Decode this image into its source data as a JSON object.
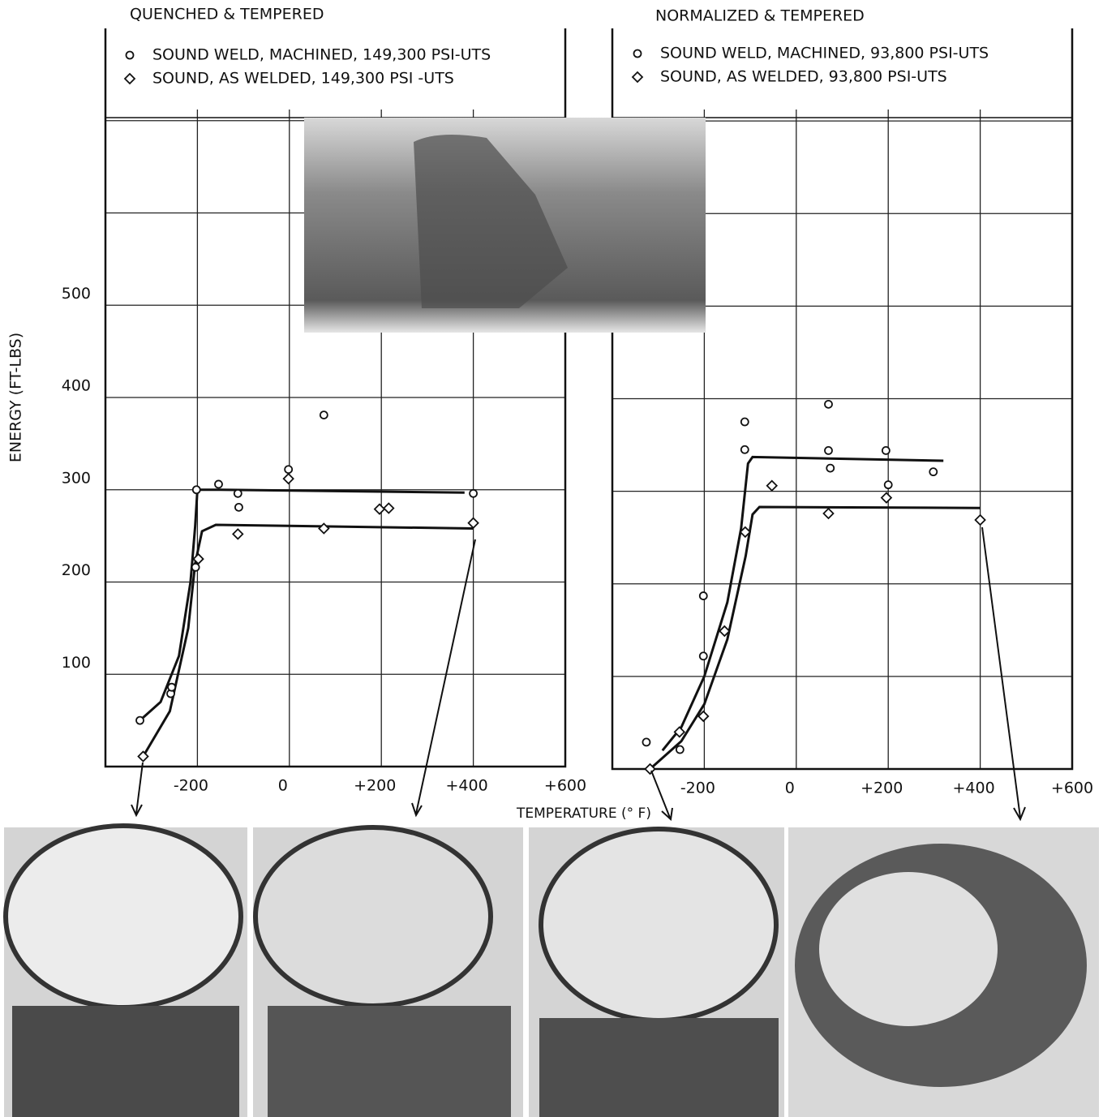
{
  "chart_data": [
    {
      "type": "scatter",
      "title": "QUENCHED & TEMPERED",
      "ylabel": "ENERGY (FT-LBS)",
      "xlabel": "TEMPERATURE (° F)",
      "xlim": [
        -400,
        600
      ],
      "ylim": [
        0,
        800
      ],
      "xticks": [
        {
          "value": -200,
          "label": "-200"
        },
        0,
        {
          "value": 200,
          "label": "+200"
        },
        {
          "value": 400,
          "label": "+400"
        },
        {
          "value": 600,
          "label": "+600"
        }
      ],
      "yticks": [
        100,
        200,
        300,
        400,
        500
      ],
      "ygrid": [
        100,
        200,
        300,
        400,
        500,
        600,
        700
      ],
      "series": [
        {
          "name": "SOUND WELD, MACHINED, 149,300 PSI-UTS",
          "marker": "circle",
          "color": "#111111",
          "x": [
            -325,
            -258,
            -256,
            -204,
            -202,
            -154,
            -112,
            -110,
            -2,
            75,
            400
          ],
          "values": [
            50,
            79,
            86,
            216,
            300,
            306,
            296,
            281,
            322,
            381,
            296
          ]
        },
        {
          "name": "SOUND, AS WELDED, 149,300 PSI -UTS",
          "marker": "diamond",
          "color": "#111111",
          "x": [
            -318,
            -198,
            -112,
            -2,
            75,
            196,
            216,
            400
          ],
          "values": [
            11,
            225,
            252,
            312,
            258,
            279,
            280,
            264
          ]
        }
      ],
      "curves": [
        {
          "x": [
            -325,
            -280,
            -240,
            -215,
            -205,
            -200,
            -150,
            381
          ],
          "values": [
            50,
            70,
            120,
            200,
            260,
            300,
            300,
            297
          ]
        },
        {
          "x": [
            -318,
            -260,
            -220,
            -205,
            -190,
            -160,
            400
          ],
          "values": [
            11,
            60,
            150,
            220,
            255,
            262,
            258
          ]
        }
      ]
    },
    {
      "type": "scatter",
      "title": "NORMALIZED & TEMPERED",
      "xlim": [
        -400,
        600
      ],
      "ylim": [
        0,
        800
      ],
      "xticks": [
        {
          "value": -200,
          "label": "-200"
        },
        0,
        {
          "value": 200,
          "label": "+200"
        },
        {
          "value": 400,
          "label": "+400"
        },
        {
          "value": 600,
          "label": "+600"
        }
      ],
      "ygrid": [
        100,
        200,
        300,
        400,
        500,
        600,
        700
      ],
      "series": [
        {
          "name": "SOUND WELD, MACHINED, 93,800 PSI-UTS",
          "marker": "circle",
          "color": "#111111",
          "x": [
            -326,
            -253,
            -202,
            -202,
            -112,
            -112,
            70,
            70,
            74,
            195,
            200,
            298
          ],
          "values": [
            29,
            21,
            187,
            122,
            375,
            345,
            394,
            344,
            325,
            344,
            307,
            321
          ]
        },
        {
          "name": "SOUND, AS WELDED, 93,800 PSI-UTS",
          "marker": "diamond",
          "color": "#111111",
          "x": [
            -318,
            -254,
            -202,
            -156,
            -111,
            -53,
            70,
            196,
            400
          ],
          "values": [
            0,
            40,
            57,
            149,
            256,
            306,
            276,
            293,
            269
          ]
        }
      ],
      "curves": [
        {
          "x": [
            -291,
            -250,
            -200,
            -150,
            -120,
            -105,
            -95,
            320
          ],
          "values": [
            20,
            45,
            100,
            180,
            260,
            330,
            337,
            333
          ]
        },
        {
          "x": [
            -318,
            -250,
            -200,
            -150,
            -110,
            -95,
            -80,
            400
          ],
          "values": [
            0,
            30,
            70,
            140,
            230,
            275,
            283,
            282
          ]
        }
      ]
    }
  ]
}
